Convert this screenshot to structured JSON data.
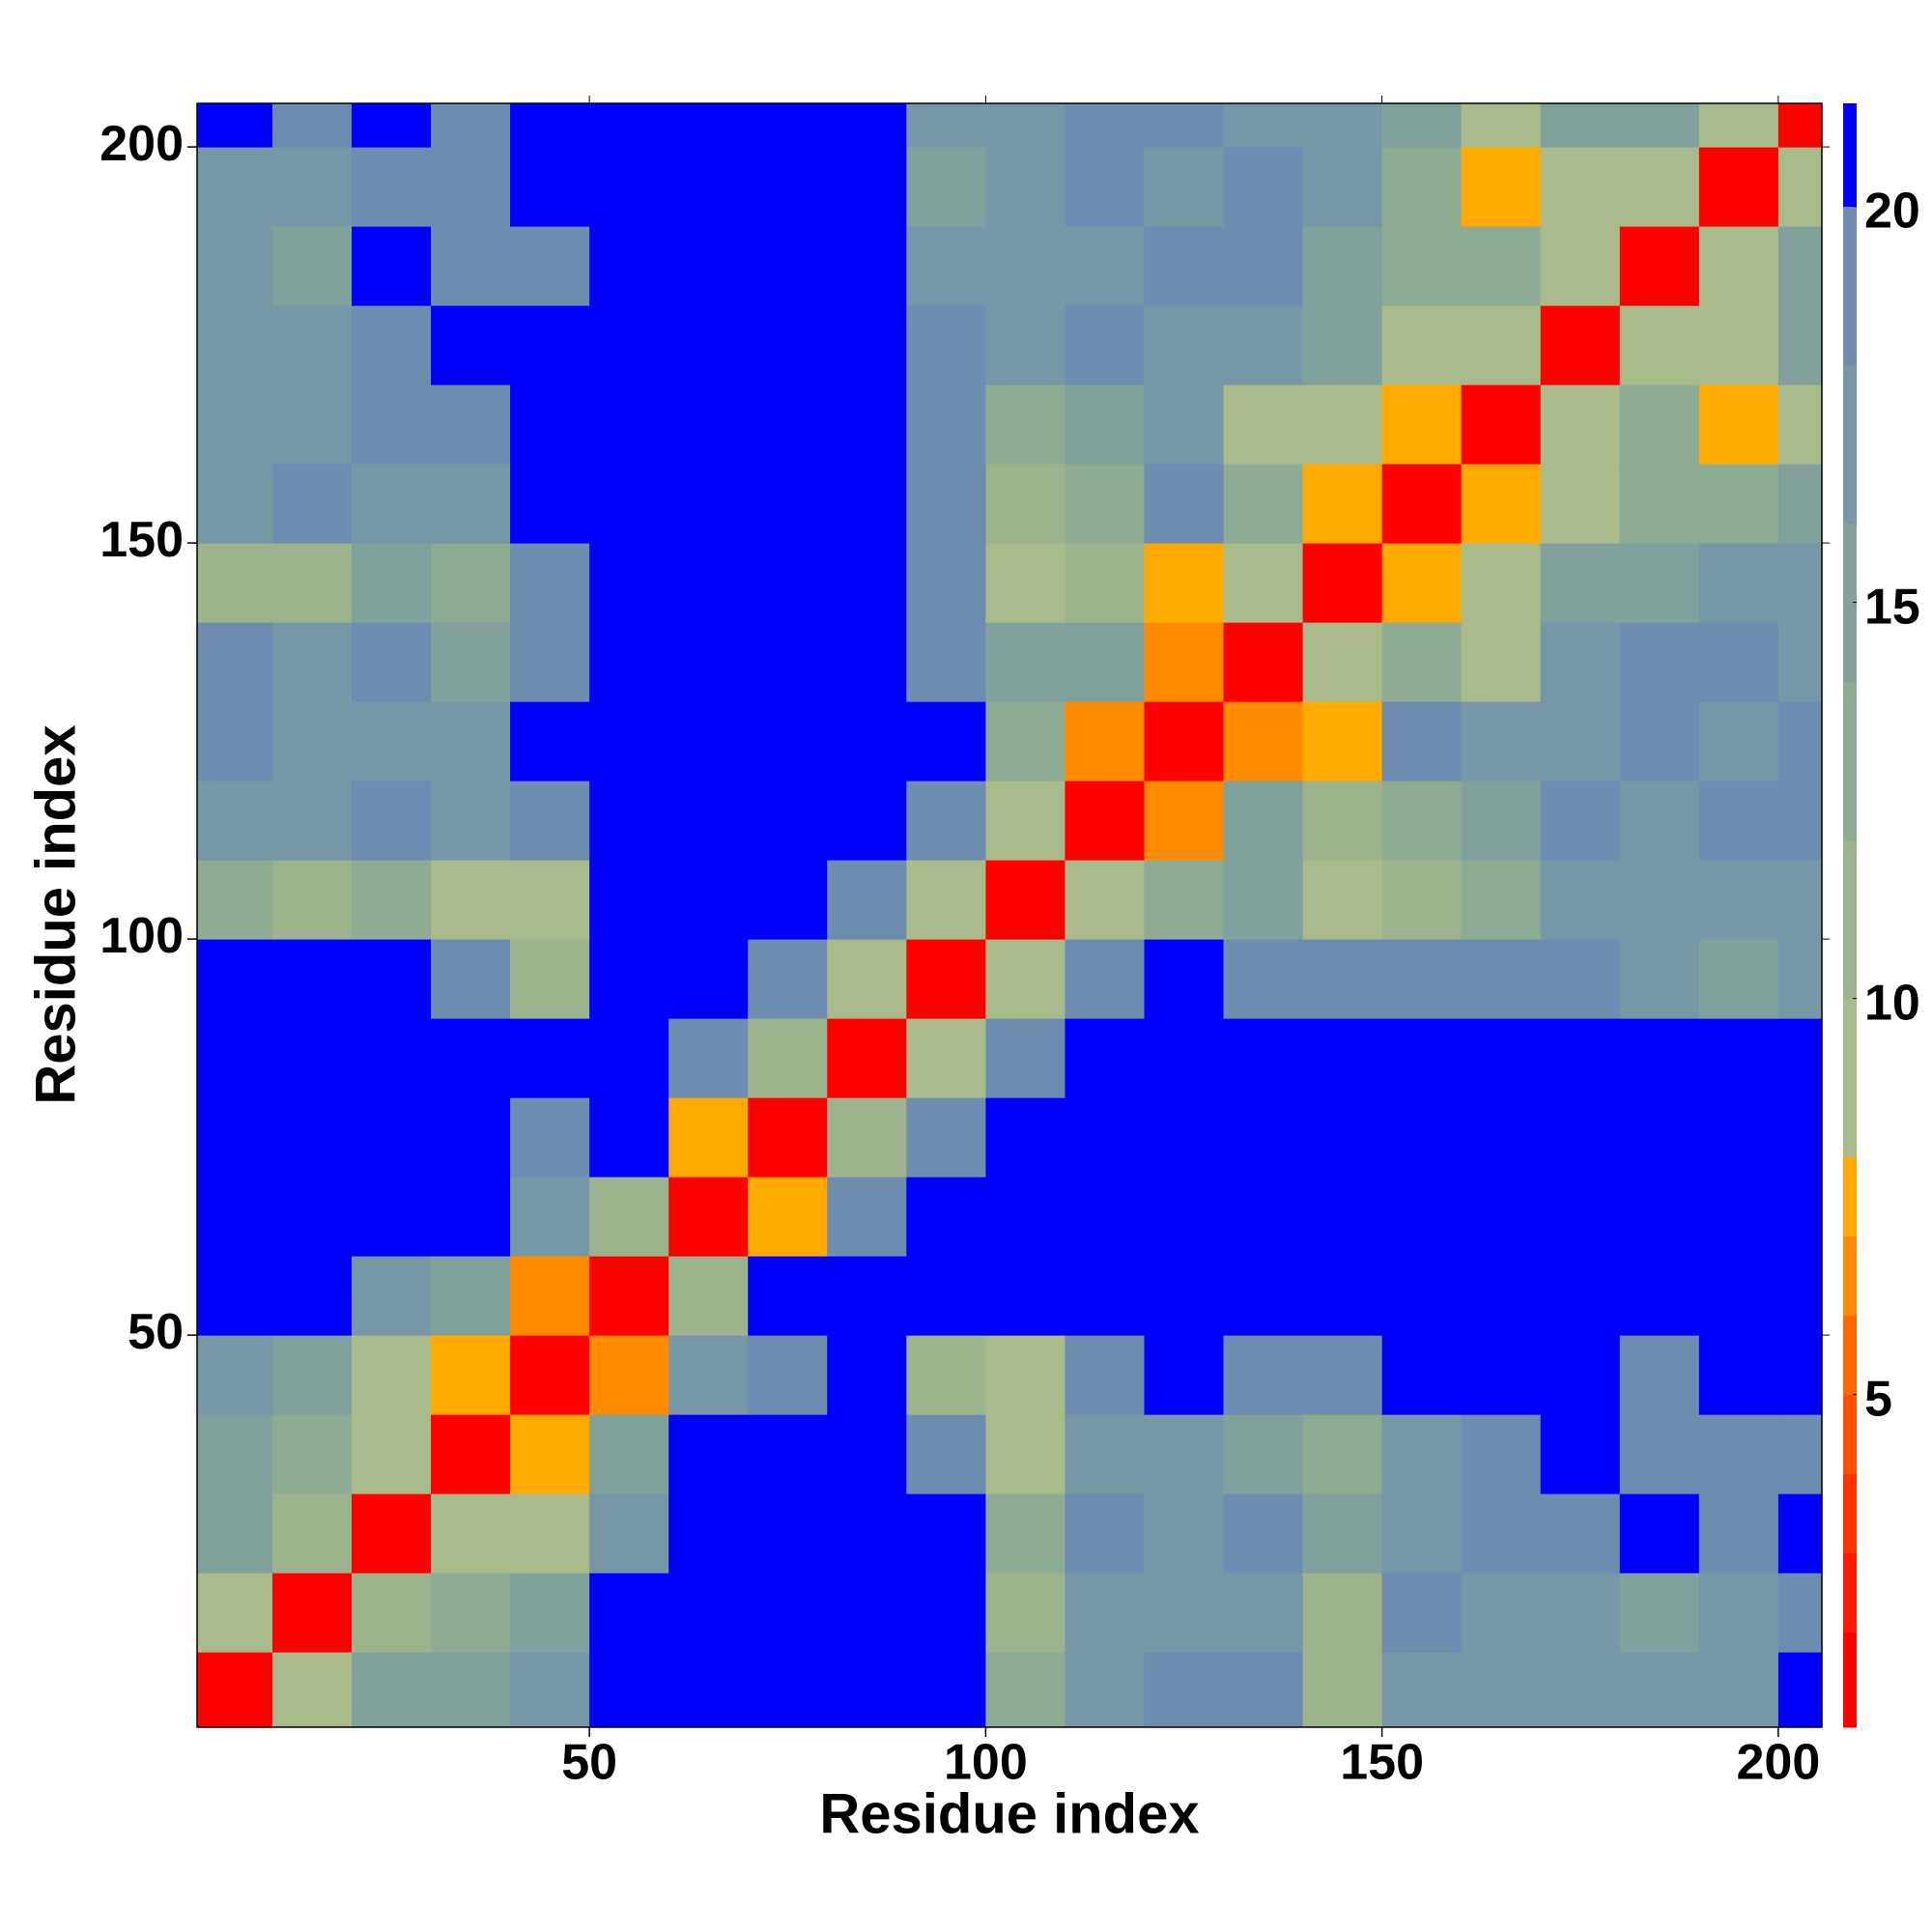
{
  "chart_data": {
    "type": "heatmap",
    "xlabel": "Residue index",
    "ylabel": "Residue index",
    "x": [
      5,
      15,
      25,
      35,
      45,
      55,
      65,
      75,
      85,
      95,
      105,
      115,
      125,
      135,
      145,
      155,
      165,
      175,
      185,
      195,
      205
    ],
    "y": [
      5,
      15,
      25,
      35,
      45,
      55,
      65,
      75,
      85,
      95,
      105,
      115,
      125,
      135,
      145,
      155,
      165,
      175,
      185,
      195,
      205
    ],
    "z": [
      [
        1.5,
        10,
        15,
        16,
        17,
        21,
        21,
        21,
        21,
        21,
        13,
        17,
        19,
        19,
        11,
        18,
        17,
        18,
        17,
        17,
        21
      ],
      [
        10,
        1.5,
        12,
        14,
        16,
        21,
        21,
        21,
        21,
        21,
        12,
        18,
        18,
        18,
        12,
        19,
        17,
        17,
        16,
        17,
        20
      ],
      [
        15,
        12,
        1.5,
        9,
        10,
        17,
        21,
        21,
        21,
        21,
        14,
        19,
        18,
        19,
        15,
        18,
        19,
        19,
        21,
        20,
        21
      ],
      [
        16,
        14,
        9,
        1.5,
        8,
        16,
        21,
        21,
        21,
        19,
        10,
        17,
        17,
        16,
        14,
        17,
        19,
        21,
        20,
        20,
        20
      ],
      [
        17,
        16,
        10,
        8,
        1.5,
        7,
        17,
        19,
        21,
        12,
        9,
        20,
        21,
        19,
        19,
        21,
        21,
        21,
        20,
        21,
        21
      ],
      [
        21,
        21,
        17,
        16,
        7,
        1.5,
        12,
        21,
        21,
        21,
        21,
        21,
        21,
        21,
        21,
        21,
        21,
        21,
        21,
        21,
        21
      ],
      [
        21,
        21,
        21,
        21,
        17,
        12,
        1.5,
        8,
        19,
        21,
        21,
        21,
        21,
        21,
        21,
        21,
        21,
        21,
        21,
        21,
        21
      ],
      [
        21,
        21,
        21,
        21,
        19,
        21,
        8,
        1.5,
        12,
        19,
        21,
        21,
        21,
        21,
        21,
        21,
        21,
        21,
        21,
        21,
        21
      ],
      [
        21,
        21,
        21,
        21,
        21,
        21,
        19,
        12,
        1.5,
        9,
        19,
        21,
        21,
        21,
        21,
        21,
        21,
        21,
        21,
        21,
        21
      ],
      [
        21,
        21,
        21,
        19,
        12,
        21,
        21,
        19,
        9,
        1.5,
        10,
        20,
        21,
        20,
        19,
        19,
        20,
        19,
        17,
        16,
        17
      ],
      [
        13,
        12,
        14,
        10,
        9,
        21,
        21,
        21,
        19,
        10,
        1.5,
        9,
        14,
        15,
        9,
        12,
        13,
        17,
        18,
        17,
        17
      ],
      [
        17,
        18,
        19,
        17,
        20,
        21,
        21,
        21,
        21,
        20,
        9,
        1.5,
        7,
        15,
        12,
        13,
        15,
        19,
        18,
        20,
        19
      ],
      [
        19,
        18,
        18,
        17,
        21,
        21,
        21,
        21,
        21,
        21,
        14,
        7,
        1.5,
        7,
        8,
        20,
        17,
        17,
        19,
        18,
        19
      ],
      [
        19,
        18,
        19,
        16,
        19,
        21,
        21,
        21,
        21,
        20,
        15,
        15,
        7,
        1.5,
        9,
        13,
        9,
        17,
        19,
        19,
        18
      ],
      [
        11,
        12,
        15,
        14,
        19,
        21,
        21,
        21,
        21,
        19,
        9,
        12,
        8,
        9,
        1.5,
        8,
        10,
        15,
        16,
        17,
        18
      ],
      [
        18,
        19,
        18,
        17,
        21,
        21,
        21,
        21,
        21,
        19,
        12,
        13,
        20,
        13,
        8,
        1.5,
        8,
        9,
        13,
        14,
        16
      ],
      [
        17,
        17,
        19,
        19,
        21,
        21,
        21,
        21,
        21,
        20,
        13,
        15,
        17,
        9,
        10,
        8,
        1.5,
        9,
        13,
        8,
        9
      ],
      [
        18,
        17,
        19,
        21,
        21,
        21,
        21,
        21,
        21,
        19,
        17,
        19,
        17,
        17,
        15,
        9,
        9,
        1.5,
        9,
        9,
        15
      ],
      [
        17,
        16,
        21,
        20,
        20,
        21,
        21,
        21,
        21,
        17,
        18,
        18,
        19,
        19,
        16,
        13,
        13,
        9,
        1.5,
        9,
        15
      ],
      [
        17,
        17,
        20,
        20,
        21,
        21,
        21,
        21,
        21,
        16,
        17,
        20,
        18,
        19,
        17,
        14,
        8,
        9,
        9,
        1.5,
        10
      ],
      [
        21,
        20,
        21,
        20,
        21,
        21,
        21,
        21,
        21,
        17,
        17,
        19,
        19,
        18,
        18,
        16,
        9,
        15,
        15,
        10,
        1.5
      ]
    ],
    "xlim": [
      0.5,
      205.5
    ],
    "ylim": [
      0.5,
      205.5
    ],
    "xticks": [
      50,
      100,
      150,
      200
    ],
    "yticks": [
      50,
      100,
      150,
      200
    ],
    "colorbar": {
      "lim": [
        0.8,
        21.3
      ],
      "ticks": [
        5,
        10,
        15,
        20
      ],
      "levels": [
        0.8,
        2,
        3,
        4,
        5,
        6,
        7,
        8,
        10,
        12,
        14,
        16,
        18,
        20,
        21.3
      ],
      "colors": [
        "#ff0000",
        "#ff1a00",
        "#ff3300",
        "#ff5000",
        "#ff6a00",
        "#ff8c00",
        "#ffaa00",
        "#a9bb8a",
        "#9cb38d",
        "#8eab93",
        "#82a19c",
        "#7797a6",
        "#6d8cb0",
        "#0000ff"
      ]
    }
  }
}
